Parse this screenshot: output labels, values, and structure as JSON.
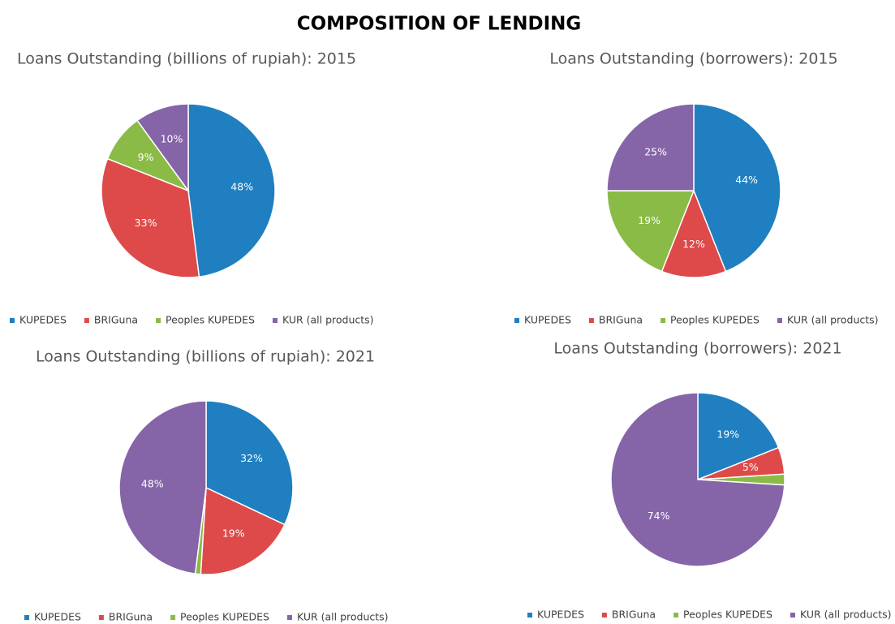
{
  "title": "COMPOSITION OF LENDING",
  "chart_data": [
    {
      "type": "pie",
      "title": "Loans Outstanding (billions of rupiah): 2015",
      "categories": [
        "KUPEDES",
        "BRIGuna",
        "Peoples KUPEDES",
        "KUR (all products)"
      ],
      "values": [
        48,
        33,
        9,
        10
      ],
      "value_labels": [
        "48%",
        "33%",
        "9%",
        "10%"
      ],
      "colors": [
        "#1f7fc1",
        "#dd4a49",
        "#8bbb47",
        "#8564a8"
      ]
    },
    {
      "type": "pie",
      "title": "Loans Outstanding (borrowers): 2015",
      "categories": [
        "KUPEDES",
        "BRIGuna",
        "Peoples KUPEDES",
        "KUR (all products)"
      ],
      "values": [
        44,
        12,
        19,
        25
      ],
      "value_labels": [
        "44%",
        "12%",
        "19%",
        "25%"
      ],
      "colors": [
        "#1f7fc1",
        "#dd4a49",
        "#8bbb47",
        "#8564a8"
      ]
    },
    {
      "type": "pie",
      "title": "Loans Outstanding (billions of rupiah): 2021",
      "categories": [
        "KUPEDES",
        "BRIGuna",
        "Peoples KUPEDES",
        "KUR (all products)"
      ],
      "values": [
        32,
        19,
        1,
        48
      ],
      "value_labels": [
        "32%",
        "19%",
        null,
        "48%"
      ],
      "colors": [
        "#1f7fc1",
        "#dd4a49",
        "#8bbb47",
        "#8564a8"
      ]
    },
    {
      "type": "pie",
      "title": "Loans Outstanding (borrowers): 2021",
      "categories": [
        "KUPEDES",
        "BRIGuna",
        "Peoples KUPEDES",
        "KUR (all products)"
      ],
      "values": [
        19,
        5,
        2,
        74
      ],
      "value_labels": [
        "19%",
        "5%",
        null,
        "74%"
      ],
      "colors": [
        "#1f7fc1",
        "#dd4a49",
        "#8bbb47",
        "#8564a8"
      ]
    }
  ]
}
